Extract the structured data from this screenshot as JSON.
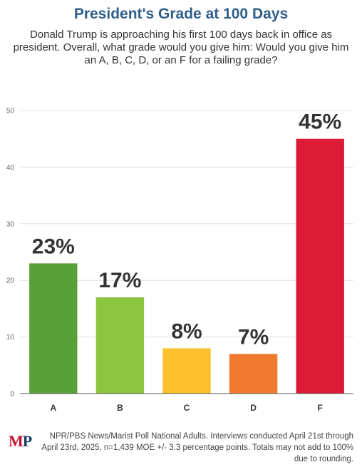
{
  "title": "President's Grade at 100 Days",
  "subtitle": "Donald Trump is approaching his first 100 days back in office as president. Overall, what grade would you give him: Would you give him an A, B, C, D, or an F for a failing grade?",
  "source_text": "NPR/PBS News/Marist Poll National Adults. Interviews conducted April 21st through April 23rd, 2025, n=1,439 MOE +/- 3.3 percentage points. Totals may not add to 100% due to rounding.",
  "logo": {
    "text": "MP",
    "m_color": "#c8102e",
    "p_color": "#1d3c6e"
  },
  "colors": {
    "title": "#2f5f8a",
    "grid": "#e0e0e0",
    "axis": "#555555",
    "label": "#333333"
  },
  "chart_data": {
    "type": "bar",
    "title": "President's Grade at 100 Days",
    "xlabel": "",
    "ylabel": "",
    "ylim": [
      0,
      50
    ],
    "yticks": [
      0,
      10,
      20,
      30,
      40,
      50
    ],
    "categories": [
      "A",
      "B",
      "C",
      "D",
      "F"
    ],
    "values": [
      23,
      17,
      8,
      7,
      45
    ],
    "data_labels": [
      "23%",
      "17%",
      "8%",
      "7%",
      "45%"
    ],
    "colors": [
      "#5aa03a",
      "#8cc63f",
      "#fbc02d",
      "#f07a2e",
      "#dc1c37"
    ],
    "grid": true,
    "legend": "none"
  }
}
